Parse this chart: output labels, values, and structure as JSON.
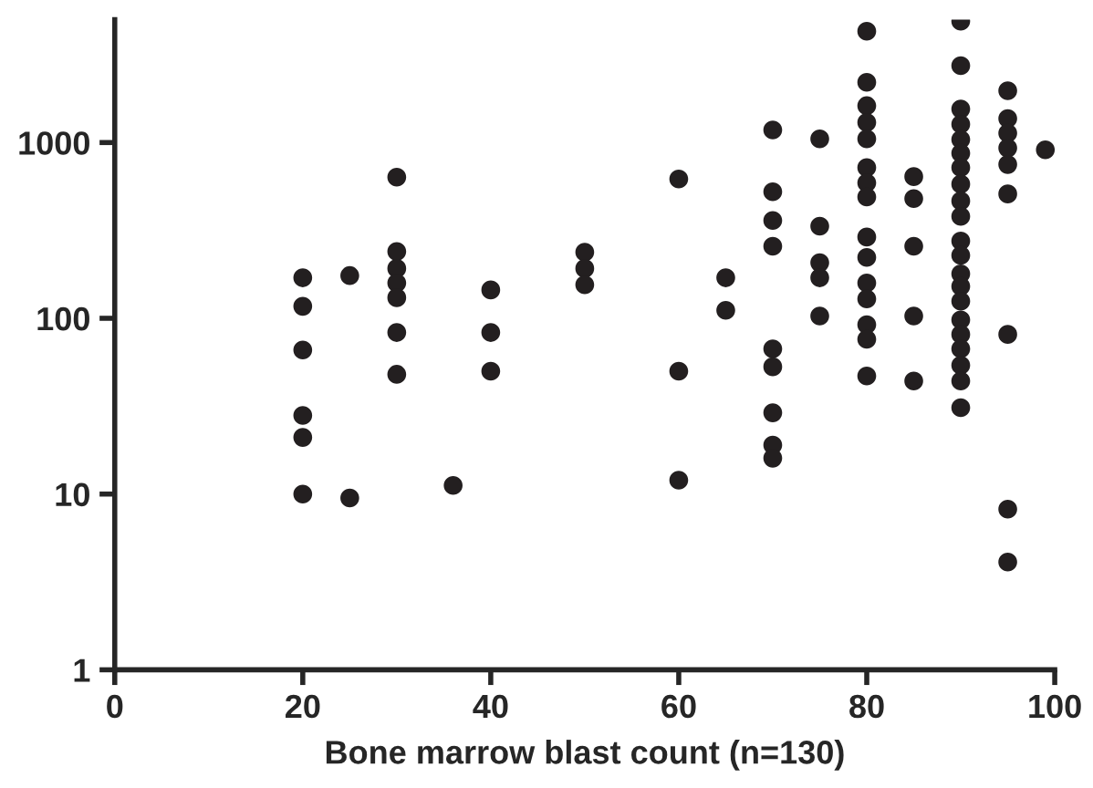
{
  "chart_data": {
    "type": "scatter",
    "xlabel": "Bone marrow blast count (n=130)",
    "x": [
      20,
      20,
      20,
      20,
      20,
      20,
      25,
      25,
      30,
      30,
      30,
      30,
      30,
      30,
      30,
      36,
      40,
      40,
      40,
      50,
      50,
      50,
      60,
      60,
      60,
      65,
      65,
      70,
      70,
      70,
      70,
      70,
      70,
      70,
      70,
      70,
      75,
      75,
      75,
      75,
      75,
      80,
      80,
      80,
      80,
      80,
      80,
      80,
      80,
      80,
      80,
      80,
      80,
      80,
      80,
      80,
      85,
      85,
      85,
      85,
      85,
      90,
      90,
      90,
      90,
      90,
      90,
      90,
      90,
      90,
      90,
      90,
      90,
      90,
      90,
      90,
      90,
      90,
      90,
      90,
      90,
      90,
      95,
      95,
      95,
      95,
      95,
      95,
      95,
      95,
      95,
      99
    ],
    "values": [
      170,
      117,
      66,
      28,
      21,
      10,
      175,
      9.5,
      635,
      240,
      192,
      159,
      131,
      83,
      48,
      11.2,
      145,
      83,
      50,
      238,
      192,
      155,
      620,
      50,
      12,
      170,
      111,
      1180,
      525,
      360,
      257,
      67,
      53,
      29,
      19,
      16,
      1050,
      334,
      207,
      170,
      103,
      4300,
      2200,
      1620,
      1300,
      1050,
      720,
      590,
      490,
      290,
      222,
      159,
      129,
      92,
      76,
      47,
      640,
      480,
      257,
      103,
      44,
      4900,
      2740,
      1550,
      1270,
      1040,
      870,
      720,
      580,
      465,
      380,
      275,
      228,
      179,
      152,
      125,
      98,
      81,
      67,
      54,
      44,
      31,
      1970,
      1370,
      1130,
      930,
      750,
      510,
      81,
      8.2,
      4.1,
      910
    ],
    "color": "#231f20",
    "marker": "circle",
    "log": "y",
    "xlim": [
      0,
      100
    ],
    "xticks": [
      0,
      20,
      40,
      60,
      80,
      100
    ],
    "ylim": [
      1,
      5000
    ],
    "yticks": [
      1,
      10,
      100,
      1000
    ],
    "grid": false
  }
}
